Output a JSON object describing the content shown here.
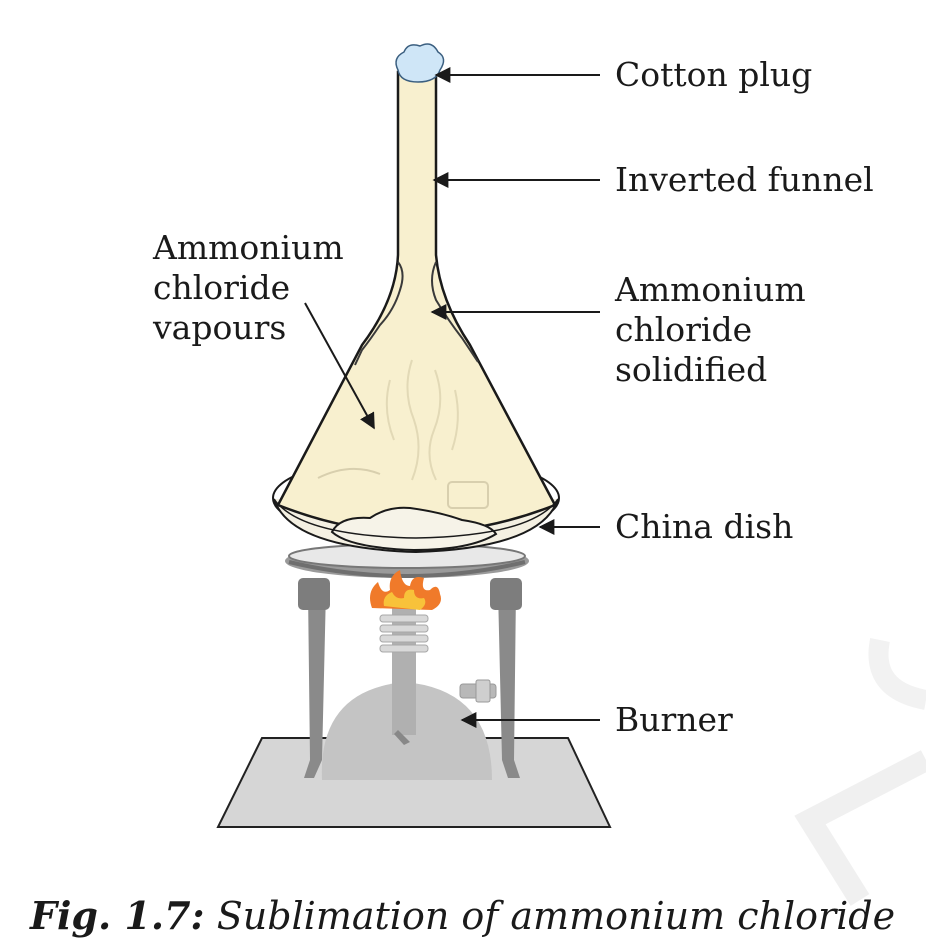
{
  "labels": {
    "cotton_plug": "Cotton plug",
    "inverted_funnel": "Inverted funnel",
    "ammonium_solidified": [
      "Ammonium",
      "chloride",
      "solidified"
    ],
    "ammonium_vapours": [
      "Ammonium",
      "chloride",
      "vapours"
    ],
    "china_dish": "China dish",
    "burner": "Burner"
  },
  "caption": {
    "figure": "Fig. 1.7:",
    "text": "Sublimation of ammonium chloride"
  },
  "colors": {
    "funnel_fill": "#f8f0cf",
    "cotton": "#cfe6f7",
    "flame_outer": "#f07a2a",
    "flame_inner": "#f8c23a",
    "stand_metal": "#8a8a8a",
    "burner_body": "#c9c9c9",
    "base_plate": "#d6d6d6"
  }
}
